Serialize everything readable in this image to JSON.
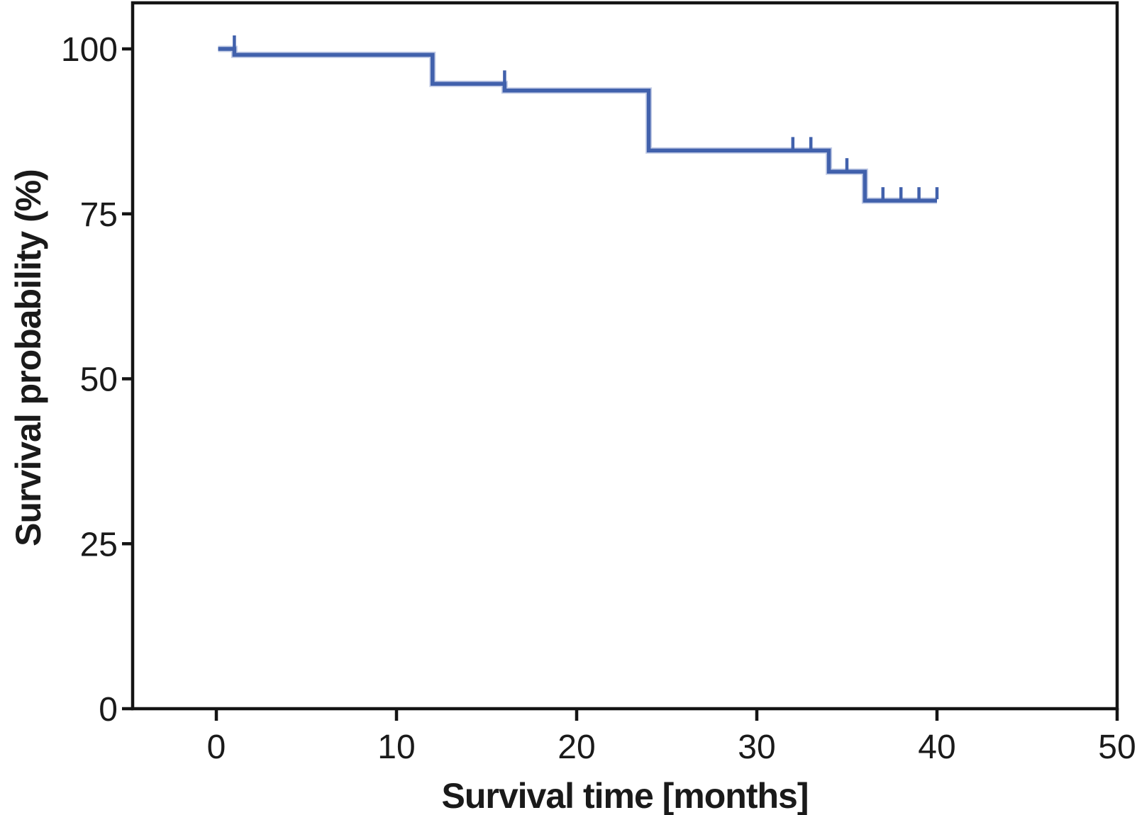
{
  "figure": {
    "background": "#ffffff",
    "axis_color": "#141414",
    "text_color": "#1a1a1a",
    "curve_color": "#4161ac",
    "curve_halo_color": "#c3cce6"
  },
  "chart_data": {
    "type": "line",
    "subtype": "kaplan-meier-step",
    "title": "",
    "xlabel": "Survival time [months]",
    "ylabel": "Survival probability (%)",
    "xlim": [
      0,
      50
    ],
    "ylim": [
      0,
      100
    ],
    "xticks": [
      0,
      10,
      20,
      30,
      40,
      50
    ],
    "yticks": [
      0,
      25,
      50,
      75,
      100
    ],
    "grid": false,
    "legend_position": "none",
    "series": [
      {
        "steps": [
          [
            0.1,
            100
          ],
          [
            1,
            100
          ],
          [
            1,
            99.1
          ],
          [
            12,
            99.1
          ],
          [
            12,
            94.7
          ],
          [
            16,
            94.7
          ],
          [
            16,
            93.7
          ],
          [
            24,
            93.7
          ],
          [
            24,
            84.6
          ],
          [
            34,
            84.6
          ],
          [
            34,
            81.4
          ],
          [
            36,
            81.4
          ],
          [
            36,
            77
          ],
          [
            40,
            77
          ]
        ],
        "censors": [
          [
            1,
            100
          ],
          [
            16,
            94.7
          ],
          [
            32,
            84.6
          ],
          [
            33,
            84.6
          ],
          [
            35,
            81.4
          ],
          [
            37,
            77
          ],
          [
            38,
            77
          ],
          [
            39,
            77
          ],
          [
            40,
            77
          ]
        ]
      }
    ]
  }
}
